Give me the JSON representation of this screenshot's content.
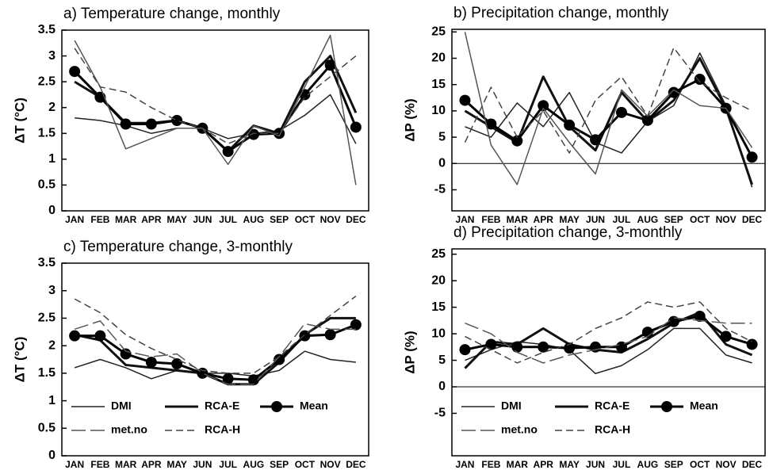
{
  "chart_data": [
    {
      "type": "line",
      "title": "a) Temperature change, monthly",
      "y_label": "ΔT (°C)",
      "categories": [
        "JAN",
        "FEB",
        "MAR",
        "APR",
        "MAY",
        "JUN",
        "JUL",
        "AUG",
        "SEP",
        "OCT",
        "NOV",
        "DEC"
      ],
      "ylim": [
        0,
        3.5
      ],
      "yticks": [
        0,
        0.5,
        1,
        1.5,
        2,
        2.5,
        3,
        3.5
      ],
      "zero_line": false,
      "series": [
        {
          "color": "#222222",
          "dash": "solid",
          "values": [
            1.8,
            1.75,
            1.65,
            1.5,
            1.6,
            1.6,
            1.4,
            1.5,
            1.55,
            1.85,
            2.25,
            1.3
          ]
        },
        {
          "color": "#111111",
          "dash": "solid",
          "weight": "heavy",
          "values": [
            2.5,
            2.2,
            1.7,
            1.7,
            1.75,
            1.6,
            1.15,
            1.65,
            1.5,
            2.5,
            3.0,
            1.9
          ]
        },
        {
          "color": "#000000",
          "dash": "solid",
          "weight": "heavy",
          "marker": "circle",
          "values": [
            2.7,
            2.2,
            1.68,
            1.68,
            1.75,
            1.6,
            1.15,
            1.48,
            1.5,
            2.25,
            2.82,
            1.62
          ]
        },
        {
          "color": "#555555",
          "dash": "solid",
          "values": [
            3.3,
            2.4,
            1.2,
            1.4,
            1.6,
            1.6,
            0.9,
            1.65,
            1.45,
            2.4,
            3.4,
            0.5
          ]
        },
        {
          "color": "#444444",
          "dash": "dashed",
          "values": [
            3.15,
            2.4,
            2.3,
            2.0,
            1.75,
            1.6,
            1.3,
            1.5,
            1.5,
            2.2,
            2.6,
            3.0
          ]
        }
      ]
    },
    {
      "type": "line",
      "title": "b) Precipitation change, monthly",
      "y_label": "ΔP (%)",
      "categories": [
        "JAN",
        "FEB",
        "MAR",
        "APR",
        "MAY",
        "JUN",
        "JUL",
        "AUG",
        "SEP",
        "OCT",
        "NOV",
        "DEC"
      ],
      "ylim": [
        -9,
        25.5
      ],
      "yticks": [
        -5,
        0,
        5,
        10,
        15,
        20,
        25
      ],
      "zero_line": true,
      "series": [
        {
          "color": "#222222",
          "dash": "solid",
          "values": [
            7,
            5,
            11.5,
            7,
            13.5,
            4,
            2,
            8,
            11,
            21,
            11,
            -4.5
          ]
        },
        {
          "color": "#111111",
          "dash": "solid",
          "weight": "heavy",
          "values": [
            10,
            7,
            4,
            16.5,
            7,
            2.5,
            13.5,
            8,
            12,
            20,
            10.5,
            -4
          ]
        },
        {
          "color": "#000000",
          "dash": "solid",
          "weight": "heavy",
          "marker": "circle",
          "values": [
            12,
            7.5,
            4.3,
            11,
            7.3,
            4.5,
            9.7,
            8.2,
            13.5,
            16,
            10.5,
            1.2
          ]
        },
        {
          "color": "#555555",
          "dash": "solid",
          "values": [
            25,
            3.5,
            -4,
            10.5,
            4,
            -2,
            14,
            9,
            14,
            11,
            10.5,
            3
          ]
        },
        {
          "color": "#444444",
          "dash": "dashed",
          "values": [
            4,
            14.5,
            5,
            10,
            2,
            12,
            16.5,
            9,
            22,
            15.5,
            12.5,
            10
          ]
        }
      ]
    },
    {
      "type": "line",
      "title": "c) Temperature change, 3-monthly",
      "y_label": "ΔT (°C)",
      "categories": [
        "JAN",
        "FEB",
        "MAR",
        "APR",
        "MAY",
        "JUN",
        "JUL",
        "AUG",
        "SEP",
        "OCT",
        "NOV",
        "DEC"
      ],
      "ylim": [
        0,
        3.5
      ],
      "yticks": [
        0,
        0.5,
        1,
        1.5,
        2,
        2.5,
        3,
        3.5
      ],
      "zero_line": false,
      "legend": "lower left",
      "series": [
        {
          "name": "DMI",
          "color": "#222222",
          "dash": "solid",
          "values": [
            1.6,
            1.75,
            1.6,
            1.4,
            1.55,
            1.5,
            1.5,
            1.45,
            1.55,
            1.9,
            1.75,
            1.7
          ]
        },
        {
          "name": "RCA-E",
          "color": "#111111",
          "dash": "solid",
          "weight": "heavy",
          "values": [
            2.2,
            2.1,
            1.65,
            1.6,
            1.55,
            1.5,
            1.3,
            1.3,
            1.7,
            2.2,
            2.5,
            2.5
          ]
        },
        {
          "name": "Mean",
          "color": "#000000",
          "dash": "solid",
          "weight": "heavy",
          "marker": "circle",
          "values": [
            2.18,
            2.18,
            1.85,
            1.7,
            1.67,
            1.5,
            1.4,
            1.38,
            1.75,
            2.18,
            2.2,
            2.38
          ]
        },
        {
          "name": "met.no",
          "color": "#555555",
          "dash": "long-dashed",
          "values": [
            2.3,
            2.45,
            1.9,
            1.8,
            1.85,
            1.5,
            1.3,
            1.3,
            1.8,
            2.4,
            2.3,
            2.3
          ]
        },
        {
          "name": "RCA-H",
          "color": "#444444",
          "dash": "dashed",
          "values": [
            2.85,
            2.6,
            2.2,
            1.95,
            1.75,
            1.55,
            1.5,
            1.5,
            1.8,
            2.2,
            2.55,
            2.9
          ]
        }
      ]
    },
    {
      "type": "line",
      "title": "d) Precipitation change, 3-monthly",
      "y_label": "ΔP (%)",
      "categories": [
        "JAN",
        "FEB",
        "MAR",
        "APR",
        "MAY",
        "JUN",
        "JUL",
        "AUG",
        "SEP",
        "OCT",
        "NOV",
        "DEC"
      ],
      "ylim": [
        -13,
        26
      ],
      "yticks": [
        -5,
        0,
        5,
        10,
        15,
        20,
        25
      ],
      "zero_line": true,
      "legend": "lower left",
      "series": [
        {
          "name": "DMI",
          "color": "#222222",
          "dash": "solid",
          "values": [
            5,
            7,
            8.5,
            8,
            7,
            2.5,
            4,
            7,
            11,
            11,
            6,
            4.5
          ]
        },
        {
          "name": "RCA-E",
          "color": "#111111",
          "dash": "solid",
          "weight": "heavy",
          "values": [
            3.5,
            8.5,
            8,
            11,
            8,
            7,
            6.5,
            9,
            12,
            14,
            8,
            6
          ]
        },
        {
          "name": "Mean",
          "color": "#000000",
          "dash": "solid",
          "weight": "heavy",
          "marker": "circle",
          "values": [
            7,
            8,
            7.5,
            7.5,
            7.3,
            7.5,
            7.5,
            10.3,
            12.3,
            13.3,
            9.5,
            8
          ]
        },
        {
          "name": "met.no",
          "color": "#555555",
          "dash": "long-dashed",
          "values": [
            12,
            10,
            6.5,
            4.5,
            6,
            7,
            8,
            9.5,
            13,
            12.5,
            12,
            12
          ]
        },
        {
          "name": "RCA-H",
          "color": "#444444",
          "dash": "dashed",
          "values": [
            9.5,
            7,
            4.5,
            6.5,
            8,
            11,
            13,
            16,
            15,
            16,
            11,
            8.5
          ]
        }
      ]
    }
  ]
}
